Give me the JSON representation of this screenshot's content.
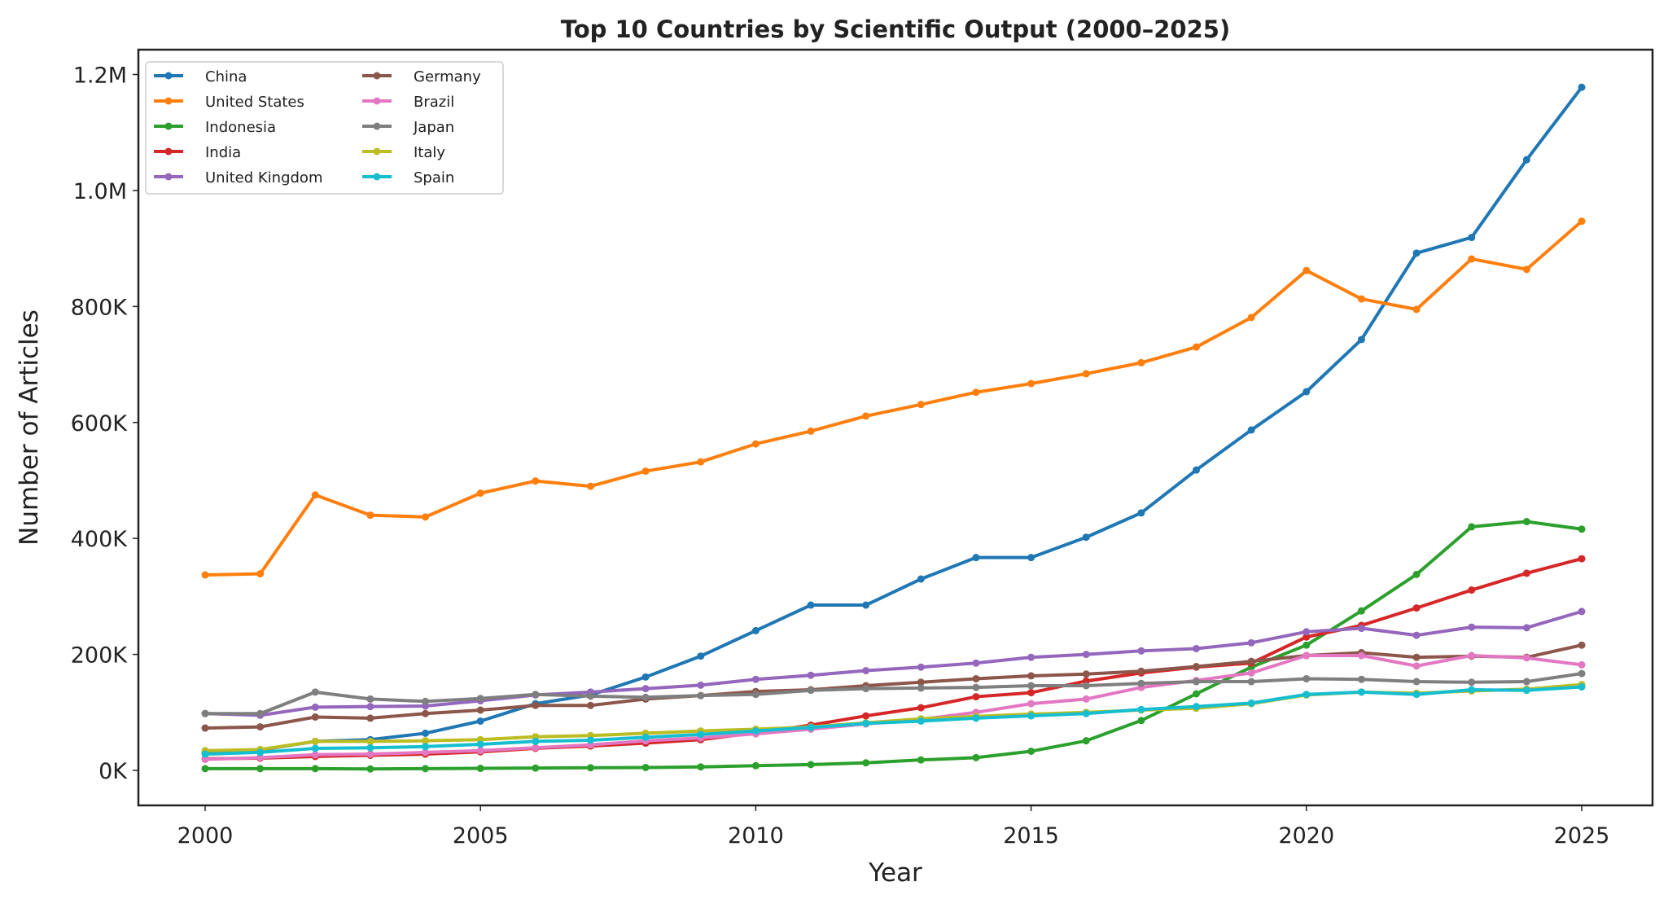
{
  "chart_data": {
    "type": "line",
    "title": "Top 10 Countries by Scientific Output (2000–2025)",
    "xlabel": "Year",
    "ylabel": "Number of Articles",
    "xlim": [
      1998.7,
      2026.2
    ],
    "ylim": [
      -60000,
      1240000
    ],
    "xticks": [
      2000,
      2005,
      2010,
      2015,
      2020,
      2025
    ],
    "xtick_labels": [
      "2000",
      "2005",
      "2010",
      "2015",
      "2020",
      "2025"
    ],
    "yticks": [
      0,
      200000,
      400000,
      600000,
      800000,
      1000000,
      1200000
    ],
    "ytick_labels": [
      "0K",
      "200K",
      "400K",
      "600K",
      "800K",
      "1.0M",
      "1.2M"
    ],
    "grid": false,
    "legend_position": "top-left",
    "legend_columns": 2,
    "x": [
      2000,
      2001,
      2002,
      2003,
      2004,
      2005,
      2006,
      2007,
      2008,
      2009,
      2010,
      2011,
      2012,
      2013,
      2014,
      2015,
      2016,
      2017,
      2018,
      2019,
      2020,
      2021,
      2022,
      2023,
      2024,
      2025
    ],
    "series": [
      {
        "name": "China",
        "color": "#1f77b4",
        "values": [
          30000,
          35000,
          50000,
          53000,
          64000,
          85000,
          115000,
          130000,
          161000,
          197000,
          241000,
          285000,
          285000,
          330000,
          367000,
          367000,
          402000,
          444000,
          518000,
          587000,
          653000,
          743000,
          892000,
          919000,
          1053000,
          1178000
        ]
      },
      {
        "name": "United States",
        "color": "#ff7f0e",
        "values": [
          337000,
          339000,
          475000,
          440000,
          437000,
          478000,
          499000,
          490000,
          516000,
          532000,
          563000,
          585000,
          611000,
          631000,
          652000,
          667000,
          684000,
          703000,
          730000,
          781000,
          862000,
          813000,
          795000,
          882000,
          864000,
          947000
        ]
      },
      {
        "name": "Indonesia",
        "color": "#2ca02c",
        "values": [
          3000,
          3000,
          3000,
          2500,
          3000,
          3500,
          4000,
          4500,
          5000,
          6000,
          8000,
          10000,
          13000,
          18000,
          22000,
          33000,
          51000,
          86000,
          132000,
          178000,
          216000,
          275000,
          338000,
          420000,
          429000,
          416000
        ]
      },
      {
        "name": "India",
        "color": "#d62728",
        "values": [
          20000,
          21000,
          24000,
          26000,
          28000,
          32000,
          38000,
          42000,
          47000,
          53000,
          65000,
          78000,
          94000,
          108000,
          127000,
          134000,
          154000,
          168000,
          178000,
          185000,
          230000,
          250000,
          280000,
          311000,
          340000,
          365000
        ]
      },
      {
        "name": "United Kingdom",
        "color": "#9467bd",
        "values": [
          98000,
          95000,
          109000,
          110000,
          111000,
          120000,
          130000,
          135000,
          141000,
          147000,
          157000,
          164000,
          172000,
          178000,
          185000,
          195000,
          200000,
          206000,
          210000,
          220000,
          239000,
          245000,
          233000,
          247000,
          246000,
          274000
        ]
      },
      {
        "name": "Germany",
        "color": "#8c564b",
        "values": [
          73000,
          75000,
          92000,
          90000,
          98000,
          104000,
          112000,
          112000,
          123000,
          129000,
          136000,
          139000,
          146000,
          152000,
          158000,
          163000,
          166000,
          171000,
          179000,
          188000,
          198000,
          203000,
          195000,
          197000,
          195000,
          216000
        ]
      },
      {
        "name": "Brazil",
        "color": "#e377c2",
        "values": [
          19000,
          22000,
          27000,
          28000,
          31000,
          34000,
          39000,
          44000,
          51000,
          56000,
          63000,
          71000,
          80000,
          88000,
          100000,
          115000,
          123000,
          143000,
          155000,
          168000,
          198000,
          198000,
          180000,
          198000,
          194000,
          182000
        ]
      },
      {
        "name": "Japan",
        "color": "#7f7f7f",
        "values": [
          98000,
          98000,
          135000,
          123000,
          119000,
          124000,
          131000,
          128000,
          126000,
          129000,
          131000,
          138000,
          141000,
          142000,
          143000,
          146000,
          146000,
          150000,
          153000,
          153000,
          158000,
          157000,
          153000,
          152000,
          153000,
          167000
        ]
      },
      {
        "name": "Italy",
        "color": "#bcbd22",
        "values": [
          34000,
          36000,
          50000,
          50000,
          51000,
          53000,
          58000,
          60000,
          64000,
          68000,
          71000,
          75000,
          82000,
          89000,
          93000,
          97000,
          100000,
          104000,
          107000,
          115000,
          130000,
          135000,
          133000,
          137000,
          140000,
          148000
        ]
      },
      {
        "name": "Spain",
        "color": "#17becf",
        "values": [
          28000,
          31000,
          38000,
          39000,
          41000,
          45000,
          50000,
          52000,
          57000,
          62000,
          68000,
          74000,
          81000,
          85000,
          90000,
          94000,
          98000,
          105000,
          110000,
          116000,
          131000,
          135000,
          131000,
          139000,
          138000,
          144000
        ]
      }
    ]
  }
}
